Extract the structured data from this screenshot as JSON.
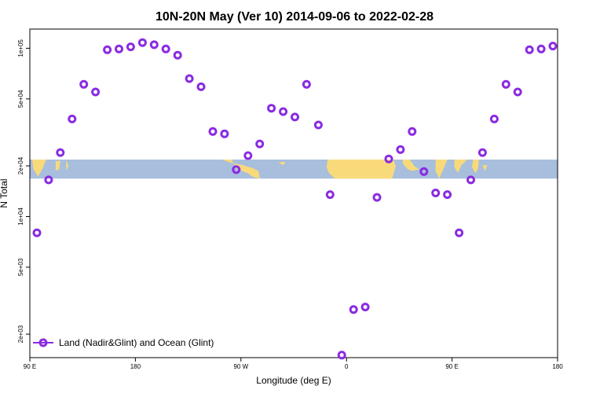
{
  "chart_data": {
    "type": "scatter",
    "title": "10N-20N May (Ver 10)   2014-09-06 to 2022-02-28",
    "xlabel": "Longitude (deg E)",
    "ylabel": "N Total",
    "x_scale": "linear",
    "y_scale": "log",
    "xlim": [
      90,
      540
    ],
    "ylim": [
      1450,
      130000
    ],
    "x_ticks": [
      {
        "value": 90,
        "label": "90 E"
      },
      {
        "value": 180,
        "label": "180"
      },
      {
        "value": 270,
        "label": "90 W"
      },
      {
        "value": 360,
        "label": "0"
      },
      {
        "value": 450,
        "label": "90 E"
      },
      {
        "value": 540,
        "label": "180"
      }
    ],
    "y_ticks": [
      {
        "value": 2000,
        "label": "2e+03"
      },
      {
        "value": 5000,
        "label": "5e+03"
      },
      {
        "value": 10000,
        "label": "1e+04"
      },
      {
        "value": 20000,
        "label": "2e+04"
      },
      {
        "value": 50000,
        "label": "5e+04"
      },
      {
        "value": 100000,
        "label": "1e+05"
      }
    ],
    "legend": {
      "position": "bottom-left"
    },
    "series": [
      {
        "name": "Land (Nadir&Glint) and Ocean (Glint)",
        "color": "#8a2be2",
        "marker": "open-circle",
        "x": [
          96,
          106,
          116,
          126,
          136,
          146,
          156,
          166,
          176,
          186,
          196,
          206,
          216,
          226,
          236,
          246,
          256,
          266,
          276,
          286,
          296,
          306,
          316,
          326,
          336,
          346,
          356,
          366,
          376,
          386,
          396,
          406,
          416,
          426,
          436,
          446,
          456,
          466,
          476,
          486,
          496,
          506,
          516,
          526,
          536
        ],
        "y": [
          8000,
          16500,
          24000,
          38000,
          61000,
          55000,
          98000,
          99000,
          102000,
          108000,
          105000,
          99000,
          91000,
          66000,
          59000,
          32000,
          31000,
          19000,
          23000,
          27000,
          44000,
          42000,
          39000,
          61000,
          35000,
          13500,
          1500,
          2800,
          2900,
          13000,
          22000,
          25000,
          32000,
          18500,
          13800,
          13500,
          8000,
          16500,
          24000,
          38000,
          61000,
          55000,
          98000,
          99000,
          103000
        ]
      }
    ],
    "background_map": {
      "band_y_range": [
        16800,
        21800
      ],
      "ocean_color": "#a8bedd",
      "land_color": "#f8da7a"
    }
  }
}
